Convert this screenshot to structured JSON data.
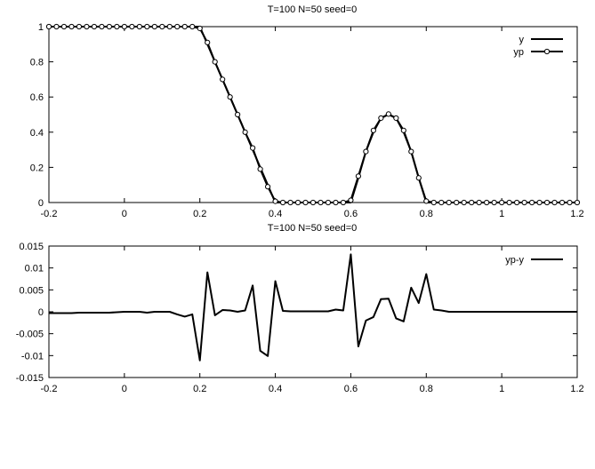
{
  "chart_data": [
    {
      "type": "line",
      "title": "T=100 N=50 seed=0",
      "xlim": [
        -0.2,
        1.2
      ],
      "ylim": [
        0,
        1
      ],
      "x_ticks": [
        "-0.2",
        "0",
        "0.2",
        "0.4",
        "0.6",
        "0.8",
        "1",
        "1.2"
      ],
      "y_ticks": [
        "0",
        "0.2",
        "0.4",
        "0.6",
        "0.8",
        "1"
      ],
      "legend_position": "top-right",
      "grid": false,
      "series": [
        {
          "name": "y",
          "marker": "none",
          "x": [
            -0.2,
            0.2,
            0.4,
            0.6,
            0.62,
            0.64,
            0.66,
            0.68,
            0.7,
            0.72,
            0.74,
            0.76,
            0.78,
            0.8,
            1.2
          ],
          "y": [
            1,
            1,
            0,
            0,
            0.14,
            0.29,
            0.4,
            0.48,
            0.5,
            0.48,
            0.4,
            0.29,
            0.14,
            0,
            0
          ]
        },
        {
          "name": "yp",
          "marker": "circle",
          "x": [
            -0.2,
            -0.18,
            -0.16,
            -0.14,
            -0.12,
            -0.1,
            -0.08,
            -0.06,
            -0.04,
            -0.02,
            0,
            0.02,
            0.04,
            0.06,
            0.08,
            0.1,
            0.12,
            0.14,
            0.16,
            0.18,
            0.2,
            0.22,
            0.24,
            0.26,
            0.28,
            0.3,
            0.32,
            0.34,
            0.36,
            0.38,
            0.4,
            0.42,
            0.44,
            0.46,
            0.48,
            0.5,
            0.52,
            0.54,
            0.56,
            0.58,
            0.6,
            0.62,
            0.64,
            0.66,
            0.68,
            0.7,
            0.72,
            0.74,
            0.76,
            0.78,
            0.8,
            0.82,
            0.84,
            0.86,
            0.88,
            0.9,
            0.92,
            0.94,
            0.96,
            0.98,
            1.0,
            1.02,
            1.04,
            1.06,
            1.08,
            1.1,
            1.12,
            1.14,
            1.16,
            1.18,
            1.2
          ],
          "y": [
            1,
            1,
            1,
            1,
            1,
            1,
            1,
            1,
            1,
            1,
            1,
            1,
            1,
            1,
            1,
            1,
            1,
            1,
            1,
            1,
            0.99,
            0.91,
            0.8,
            0.7,
            0.6,
            0.5,
            0.4,
            0.31,
            0.19,
            0.09,
            0.007,
            0,
            0,
            0,
            0,
            0,
            0,
            0,
            0,
            0,
            0.013,
            0.15,
            0.29,
            0.41,
            0.48,
            0.503,
            0.48,
            0.41,
            0.29,
            0.14,
            0.008,
            0,
            0,
            0,
            0,
            0,
            0,
            0,
            0,
            0,
            0,
            0,
            0,
            0,
            0,
            0,
            0,
            0,
            0,
            0,
            0
          ]
        }
      ]
    },
    {
      "type": "line",
      "title": "T=100 N=50 seed=0",
      "xlim": [
        -0.2,
        1.2
      ],
      "ylim": [
        -0.015,
        0.015
      ],
      "x_ticks": [
        "-0.2",
        "0",
        "0.2",
        "0.4",
        "0.6",
        "0.8",
        "1",
        "1.2"
      ],
      "y_ticks": [
        "-0.015",
        "-0.01",
        "-0.005",
        "0",
        "0.005",
        "0.01",
        "0.015"
      ],
      "legend_position": "top-right",
      "grid": false,
      "series": [
        {
          "name": "yp-y",
          "marker": "none",
          "x": [
            -0.2,
            -0.18,
            -0.16,
            -0.14,
            -0.12,
            -0.1,
            -0.08,
            -0.06,
            -0.04,
            -0.02,
            0,
            0.02,
            0.04,
            0.06,
            0.08,
            0.1,
            0.12,
            0.14,
            0.16,
            0.18,
            0.2,
            0.22,
            0.24,
            0.26,
            0.28,
            0.3,
            0.32,
            0.34,
            0.36,
            0.38,
            0.4,
            0.42,
            0.44,
            0.46,
            0.48,
            0.5,
            0.52,
            0.54,
            0.56,
            0.58,
            0.6,
            0.62,
            0.64,
            0.66,
            0.68,
            0.7,
            0.72,
            0.74,
            0.76,
            0.78,
            0.8,
            0.82,
            0.84,
            0.86,
            0.88,
            0.9,
            0.92,
            0.94,
            0.96,
            0.98,
            1.0,
            1.02,
            1.04,
            1.06,
            1.08,
            1.1,
            1.12,
            1.14,
            1.16,
            1.18,
            1.2
          ],
          "y": [
            -0.0003,
            -0.0003,
            -0.0003,
            -0.0003,
            -0.0002,
            -0.0002,
            -0.0002,
            -0.0002,
            -0.0002,
            -0.0001,
            0,
            0,
            0,
            -0.0002,
            0,
            0,
            0,
            -0.0006,
            -0.0011,
            -0.0006,
            -0.0111,
            0.009,
            -0.0008,
            0.0004,
            0.0003,
            0,
            0.0003,
            0.006,
            -0.0089,
            -0.0101,
            0.007,
            0.0002,
            0.0001,
            0.0001,
            0.0001,
            0.0001,
            0.0001,
            0.0001,
            0.0005,
            0.0003,
            0.0131,
            -0.0079,
            -0.002,
            -0.0012,
            0.0029,
            0.003,
            -0.0015,
            -0.0022,
            0.0055,
            0.002,
            0.0086,
            0.0005,
            0.0003,
            0,
            0,
            0,
            0,
            0,
            0,
            0,
            0,
            0,
            0,
            0,
            0,
            0,
            0,
            0,
            0,
            0,
            0
          ]
        }
      ]
    }
  ]
}
